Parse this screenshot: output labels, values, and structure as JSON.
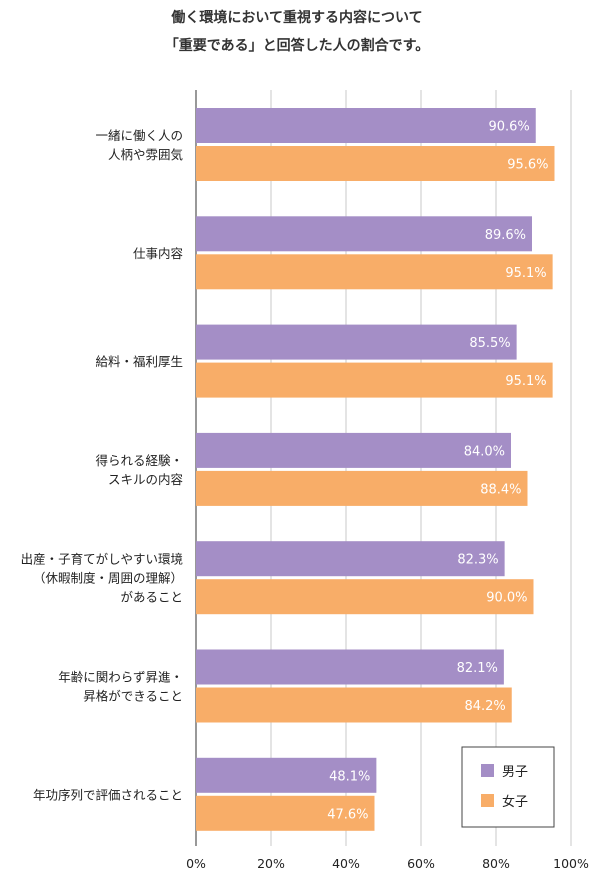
{
  "chart_data": {
    "type": "bar",
    "orientation": "horizontal",
    "title_lines": [
      "働く環境において重視する内容について",
      "「重要である」と回答した人の割合です。"
    ],
    "categories": [
      [
        "一緒に働く人の",
        "人柄や雰囲気"
      ],
      [
        "仕事内容"
      ],
      [
        "給料・福利厚生"
      ],
      [
        "得られる経験・",
        "スキルの内容"
      ],
      [
        "出産・子育てがしやすい環境",
        "（休暇制度・周囲の理解）",
        "があること"
      ],
      [
        "年齢に関わらず昇進・",
        "昇格ができること"
      ],
      [
        "年功序列で評価されること"
      ]
    ],
    "series": [
      {
        "name": "男子",
        "color": "#a48ec6",
        "values": [
          90.6,
          89.6,
          85.5,
          84.0,
          82.3,
          82.1,
          48.1
        ],
        "labels": [
          "90.6%",
          "89.6%",
          "85.5%",
          "84.0%",
          "82.3%",
          "82.1%",
          "48.1%"
        ]
      },
      {
        "name": "女子",
        "color": "#f8ad68",
        "values": [
          95.6,
          95.1,
          95.1,
          88.4,
          90.0,
          84.2,
          47.6
        ],
        "labels": [
          "95.6%",
          "95.1%",
          "95.1%",
          "88.4%",
          "90.0%",
          "84.2%",
          "47.6%"
        ]
      }
    ],
    "xlim": [
      0,
      100
    ],
    "x_ticks": [
      0,
      20,
      40,
      60,
      80,
      100
    ],
    "x_tick_labels": [
      "0%",
      "20%",
      "40%",
      "60%",
      "80%",
      "100%"
    ],
    "grid": true,
    "legend_position": "bottom-right"
  }
}
